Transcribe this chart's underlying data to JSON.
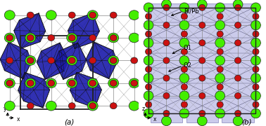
{
  "fig_width": 3.78,
  "fig_height": 1.8,
  "dpi": 100,
  "bg_color": "#ffffff",
  "green_color": "#44ee00",
  "red_color": "#cc1111",
  "blue_dark": "#1a1aaa",
  "blue_light": "#7777cc",
  "blue_slab_alpha": 0.38,
  "bond_color": "#888888",
  "box_color": "#222222",
  "ann_color": "#111111",
  "bi_pb_label": "Bi/Pb",
  "o1_label": "O1",
  "o2_label": "O2",
  "label_a": "(a)",
  "label_b": "(b)"
}
